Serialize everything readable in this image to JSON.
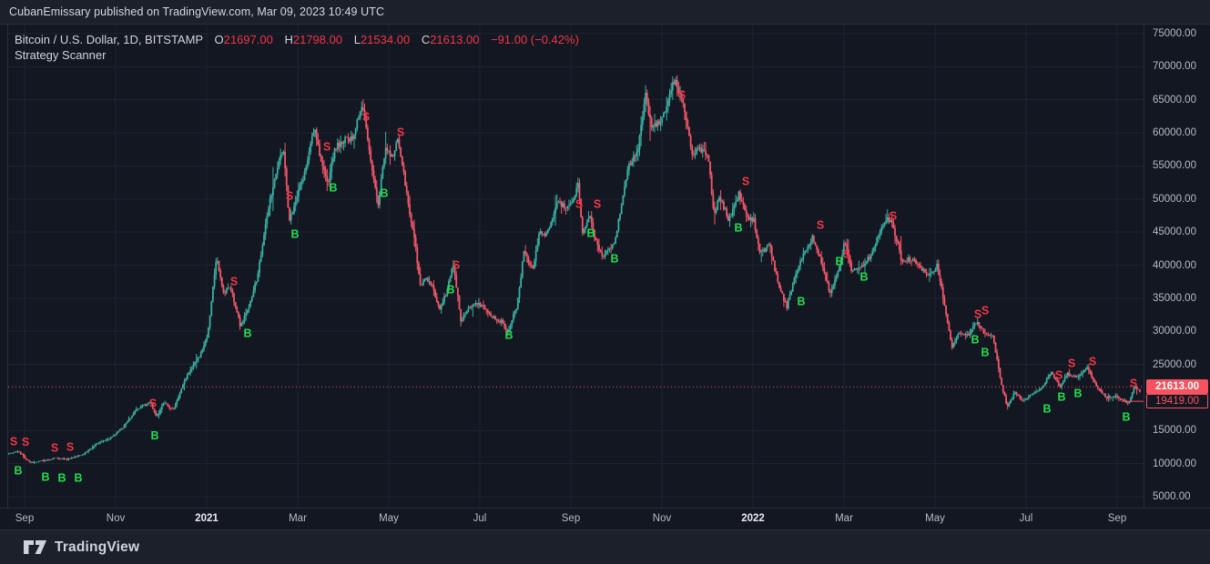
{
  "published_bar": {
    "text": "CubanEmissary published on TradingView.com, Mar 09, 2023 10:49 UTC"
  },
  "legend": {
    "symbol": "Bitcoin / U.S. Dollar, 1D, BITSTAMP",
    "ohlc": [
      {
        "label": "O",
        "value": "21697.00"
      },
      {
        "label": "H",
        "value": "21798.00"
      },
      {
        "label": "L",
        "value": "21534.00"
      },
      {
        "label": "C",
        "value": "21613.00"
      }
    ],
    "change": "−91.00 (−0.42%)",
    "indicator": "Strategy Scanner"
  },
  "footer": {
    "brand": "TradingView"
  },
  "colors": {
    "background": "#131722",
    "panel": "#1b202b",
    "border": "#2a2e39",
    "grid": "#1d2331",
    "up_candle": "#3ab0a2",
    "down_candle": "#f4586a",
    "buy_marker": "#22dd4e",
    "sell_marker": "#f23645",
    "last_price_line": "#f7525f",
    "badge_fill": "#f7525f",
    "axis_text": "#b7bac3",
    "value_red": "#f23645"
  },
  "chart_data": {
    "type": "candlestick",
    "title": "Bitcoin / U.S. Dollar, 1D, BITSTAMP with Strategy Scanner buy/sell signals",
    "ylim": [
      3500,
      76500
    ],
    "grid": true,
    "y_axis_ticks": [
      {
        "value": 75000,
        "label": "75000.00"
      },
      {
        "value": 70000,
        "label": "70000.00"
      },
      {
        "value": 65000,
        "label": "65000.00"
      },
      {
        "value": 60000,
        "label": "60000.00"
      },
      {
        "value": 55000,
        "label": "55000.00"
      },
      {
        "value": 50000,
        "label": "50000.00"
      },
      {
        "value": 45000,
        "label": "45000.00"
      },
      {
        "value": 40000,
        "label": "40000.00"
      },
      {
        "value": 35000,
        "label": "35000.00"
      },
      {
        "value": 30000,
        "label": "30000.00"
      },
      {
        "value": 25000,
        "label": "25000.00"
      },
      {
        "value": 15000,
        "label": "15000.00"
      },
      {
        "value": 10000,
        "label": "10000.00"
      },
      {
        "value": 5000,
        "label": "5000.00"
      }
    ],
    "x_axis_ticks": [
      {
        "m": 0,
        "label": "Sep",
        "year": false
      },
      {
        "m": 2,
        "label": "Nov",
        "year": false
      },
      {
        "m": 4,
        "label": "2021",
        "year": true
      },
      {
        "m": 6,
        "label": "Mar",
        "year": false
      },
      {
        "m": 8,
        "label": "May",
        "year": false
      },
      {
        "m": 10,
        "label": "Jul",
        "year": false
      },
      {
        "m": 12,
        "label": "Sep",
        "year": false
      },
      {
        "m": 14,
        "label": "Nov",
        "year": false
      },
      {
        "m": 16,
        "label": "2022",
        "year": true
      },
      {
        "m": 18,
        "label": "Mar",
        "year": false
      },
      {
        "m": 20,
        "label": "May",
        "year": false
      },
      {
        "m": 22,
        "label": "Jul",
        "year": false
      },
      {
        "m": 24,
        "label": "Sep",
        "year": false
      }
    ],
    "last_price": {
      "value": 21613,
      "label": "21613.00"
    },
    "secondary_price": {
      "value": 19419,
      "label": "19419.00"
    },
    "price_keypoints": [
      [
        -0.35,
        11400
      ],
      [
        -0.1,
        11900
      ],
      [
        0.15,
        10100
      ],
      [
        0.4,
        10400
      ],
      [
        0.7,
        10800
      ],
      [
        1.0,
        10650
      ],
      [
        1.3,
        11350
      ],
      [
        1.6,
        12900
      ],
      [
        1.9,
        13750
      ],
      [
        2.2,
        15500
      ],
      [
        2.5,
        18300
      ],
      [
        2.8,
        19300
      ],
      [
        2.93,
        17000
      ],
      [
        3.1,
        19200
      ],
      [
        3.3,
        18100
      ],
      [
        3.6,
        23300
      ],
      [
        3.9,
        26500
      ],
      [
        4.05,
        29300
      ],
      [
        4.25,
        41500
      ],
      [
        4.4,
        35600
      ],
      [
        4.55,
        36800
      ],
      [
        4.77,
        30900
      ],
      [
        4.95,
        33300
      ],
      [
        5.15,
        38300
      ],
      [
        5.35,
        47200
      ],
      [
        5.6,
        55500
      ],
      [
        5.72,
        57400
      ],
      [
        5.85,
        46500
      ],
      [
        6.0,
        49800
      ],
      [
        6.2,
        54500
      ],
      [
        6.4,
        61000
      ],
      [
        6.55,
        55800
      ],
      [
        6.7,
        52400
      ],
      [
        6.85,
        57600
      ],
      [
        7.05,
        58900
      ],
      [
        7.25,
        59100
      ],
      [
        7.45,
        64500
      ],
      [
        7.65,
        55600
      ],
      [
        7.8,
        48900
      ],
      [
        7.95,
        57500
      ],
      [
        8.1,
        56500
      ],
      [
        8.25,
        58900
      ],
      [
        8.45,
        49500
      ],
      [
        8.62,
        42900
      ],
      [
        8.72,
        36800
      ],
      [
        8.85,
        38300
      ],
      [
        9.0,
        36600
      ],
      [
        9.15,
        33500
      ],
      [
        9.3,
        35800
      ],
      [
        9.45,
        40300
      ],
      [
        9.62,
        31500
      ],
      [
        9.72,
        32800
      ],
      [
        9.9,
        34400
      ],
      [
        10.1,
        33700
      ],
      [
        10.3,
        32200
      ],
      [
        10.5,
        31500
      ],
      [
        10.65,
        29900
      ],
      [
        10.85,
        33900
      ],
      [
        11.0,
        41800
      ],
      [
        11.2,
        39500
      ],
      [
        11.35,
        45400
      ],
      [
        11.5,
        44500
      ],
      [
        11.72,
        49300
      ],
      [
        11.9,
        48900
      ],
      [
        12.1,
        49900
      ],
      [
        12.2,
        52300
      ],
      [
        12.28,
        45100
      ],
      [
        12.45,
        47300
      ],
      [
        12.6,
        43000
      ],
      [
        12.75,
        41200
      ],
      [
        12.9,
        42800
      ],
      [
        13.0,
        43600
      ],
      [
        13.15,
        49500
      ],
      [
        13.3,
        54900
      ],
      [
        13.5,
        57500
      ],
      [
        13.67,
        66000
      ],
      [
        13.8,
        61000
      ],
      [
        13.95,
        61500
      ],
      [
        14.1,
        63300
      ],
      [
        14.32,
        68200
      ],
      [
        14.5,
        64300
      ],
      [
        14.7,
        57000
      ],
      [
        14.9,
        57500
      ],
      [
        15.05,
        56900
      ],
      [
        15.17,
        47500
      ],
      [
        15.3,
        50300
      ],
      [
        15.5,
        46800
      ],
      [
        15.72,
        50700
      ],
      [
        15.9,
        47400
      ],
      [
        16.05,
        46800
      ],
      [
        16.2,
        41800
      ],
      [
        16.4,
        43000
      ],
      [
        16.6,
        36700
      ],
      [
        16.78,
        33700
      ],
      [
        16.95,
        38200
      ],
      [
        17.15,
        41700
      ],
      [
        17.35,
        44300
      ],
      [
        17.55,
        40100
      ],
      [
        17.73,
        35500
      ],
      [
        17.9,
        39000
      ],
      [
        18.05,
        43500
      ],
      [
        18.2,
        39200
      ],
      [
        18.4,
        39400
      ],
      [
        18.6,
        41300
      ],
      [
        18.8,
        44500
      ],
      [
        18.95,
        47000
      ],
      [
        19.1,
        46300
      ],
      [
        19.3,
        40600
      ],
      [
        19.5,
        41000
      ],
      [
        19.7,
        39800
      ],
      [
        19.9,
        38400
      ],
      [
        20.08,
        39900
      ],
      [
        20.25,
        33700
      ],
      [
        20.4,
        27600
      ],
      [
        20.55,
        29800
      ],
      [
        20.75,
        29300
      ],
      [
        20.95,
        31400
      ],
      [
        21.1,
        29900
      ],
      [
        21.3,
        29300
      ],
      [
        21.48,
        22300
      ],
      [
        21.62,
        18500
      ],
      [
        21.78,
        20800
      ],
      [
        21.95,
        19600
      ],
      [
        22.15,
        20300
      ],
      [
        22.35,
        21400
      ],
      [
        22.6,
        23800
      ],
      [
        22.78,
        21500
      ],
      [
        22.95,
        23600
      ],
      [
        23.15,
        23000
      ],
      [
        23.38,
        24500
      ],
      [
        23.6,
        21400
      ],
      [
        23.8,
        20000
      ],
      [
        24.0,
        20200
      ],
      [
        24.15,
        19600
      ],
      [
        24.28,
        19100
      ],
      [
        24.42,
        21600
      ],
      [
        24.52,
        20900
      ]
    ],
    "signals": [
      {
        "m": -0.24,
        "price": 13400,
        "side": "S"
      },
      {
        "m": 0.02,
        "price": 13300,
        "side": "S"
      },
      {
        "m": -0.14,
        "price": 9000,
        "side": "B"
      },
      {
        "m": 0.46,
        "price": 8050,
        "side": "B"
      },
      {
        "m": 0.66,
        "price": 12450,
        "side": "S"
      },
      {
        "m": 1.0,
        "price": 12550,
        "side": "S"
      },
      {
        "m": 0.82,
        "price": 7900,
        "side": "B"
      },
      {
        "m": 1.18,
        "price": 7900,
        "side": "B"
      },
      {
        "m": 2.82,
        "price": 19150,
        "side": "S"
      },
      {
        "m": 2.86,
        "price": 14250,
        "side": "B"
      },
      {
        "m": 4.6,
        "price": 37600,
        "side": "S"
      },
      {
        "m": 4.9,
        "price": 29750,
        "side": "B"
      },
      {
        "m": 5.82,
        "price": 50500,
        "side": "S"
      },
      {
        "m": 5.94,
        "price": 44750,
        "side": "B"
      },
      {
        "m": 6.64,
        "price": 57950,
        "side": "S"
      },
      {
        "m": 6.78,
        "price": 51750,
        "side": "B"
      },
      {
        "m": 7.5,
        "price": 62500,
        "side": "S"
      },
      {
        "m": 7.9,
        "price": 50950,
        "side": "B"
      },
      {
        "m": 8.26,
        "price": 60150,
        "side": "S"
      },
      {
        "m": 9.36,
        "price": 36350,
        "side": "B"
      },
      {
        "m": 9.48,
        "price": 40100,
        "side": "S"
      },
      {
        "m": 10.64,
        "price": 29500,
        "side": "B"
      },
      {
        "m": 12.18,
        "price": 49300,
        "side": "S"
      },
      {
        "m": 12.44,
        "price": 44900,
        "side": "B"
      },
      {
        "m": 12.58,
        "price": 49300,
        "side": "S"
      },
      {
        "m": 12.96,
        "price": 41050,
        "side": "B"
      },
      {
        "m": 14.44,
        "price": 65800,
        "side": "S"
      },
      {
        "m": 15.68,
        "price": 45700,
        "side": "B"
      },
      {
        "m": 15.84,
        "price": 52750,
        "side": "S"
      },
      {
        "m": 17.06,
        "price": 34600,
        "side": "B"
      },
      {
        "m": 17.48,
        "price": 46100,
        "side": "S"
      },
      {
        "m": 17.9,
        "price": 40600,
        "side": "B"
      },
      {
        "m": 18.06,
        "price": 41700,
        "side": "S"
      },
      {
        "m": 18.44,
        "price": 38300,
        "side": "B"
      },
      {
        "m": 19.08,
        "price": 47500,
        "side": "S"
      },
      {
        "m": 20.88,
        "price": 28800,
        "side": "B"
      },
      {
        "m": 20.94,
        "price": 32650,
        "side": "S"
      },
      {
        "m": 21.1,
        "price": 33200,
        "side": "S"
      },
      {
        "m": 21.1,
        "price": 26900,
        "side": "B"
      },
      {
        "m": 22.46,
        "price": 18350,
        "side": "B"
      },
      {
        "m": 22.72,
        "price": 23450,
        "side": "S"
      },
      {
        "m": 22.78,
        "price": 20150,
        "side": "B"
      },
      {
        "m": 23.0,
        "price": 25250,
        "side": "S"
      },
      {
        "m": 23.14,
        "price": 20700,
        "side": "B"
      },
      {
        "m": 23.46,
        "price": 25500,
        "side": "S"
      },
      {
        "m": 24.2,
        "price": 17100,
        "side": "B"
      },
      {
        "m": 24.36,
        "price": 22200,
        "side": "S"
      }
    ]
  }
}
